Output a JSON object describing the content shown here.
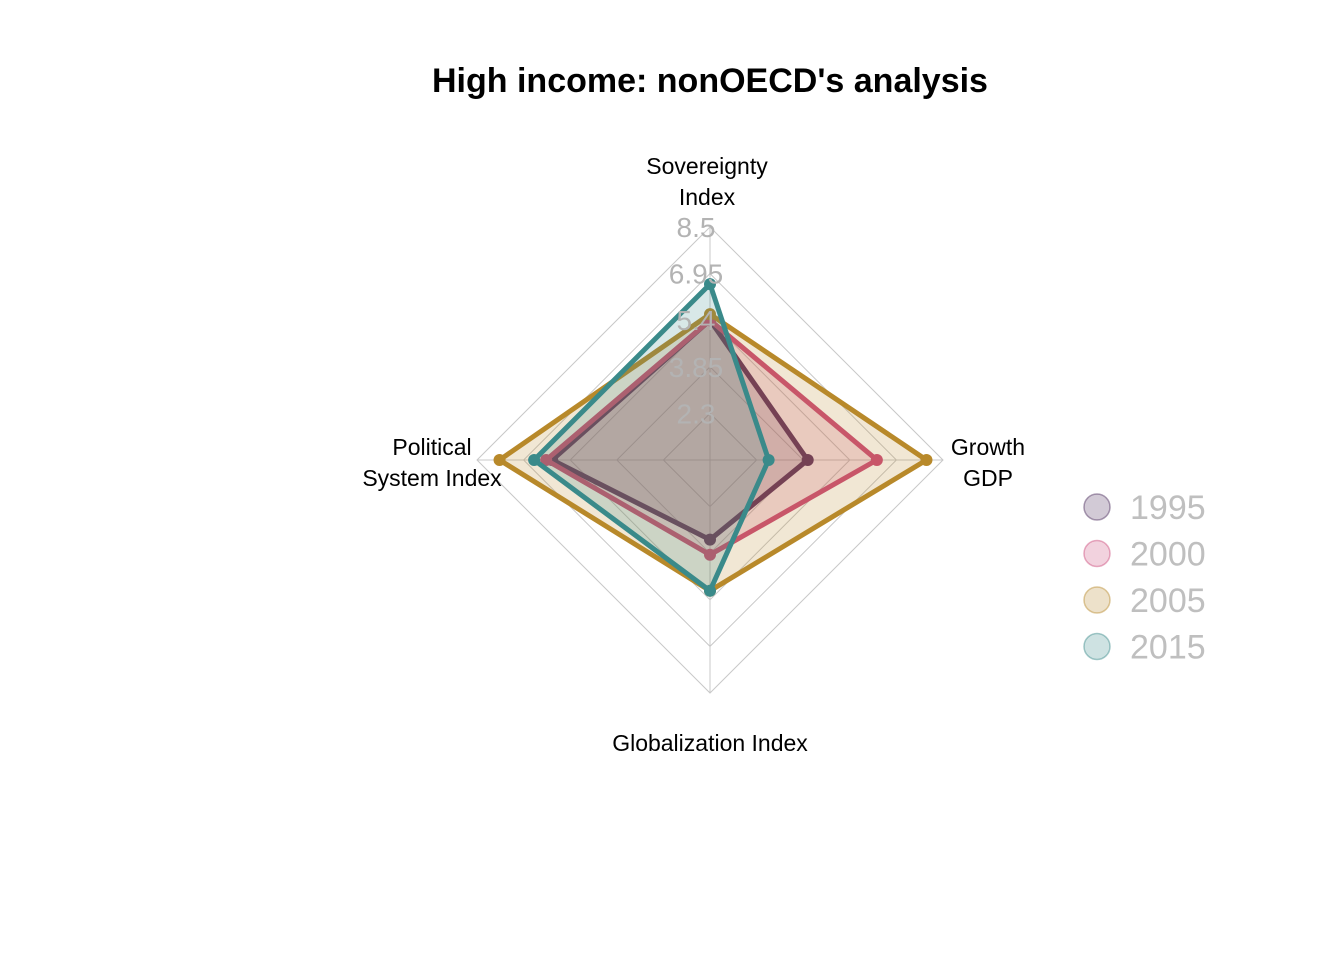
{
  "chart_data": {
    "type": "radar",
    "title": "High income: nonOECD's analysis",
    "axes": [
      {
        "label_lines": [
          "Sovereignty",
          "Index"
        ]
      },
      {
        "label_lines": [
          "Growth",
          "GDP"
        ]
      },
      {
        "label_lines": [
          "Globalization Index"
        ]
      },
      {
        "label_lines": [
          "Political",
          "System Index"
        ]
      }
    ],
    "radial_ticks": [
      "2.3",
      "3.85",
      "5.4",
      "6.95",
      "8.5"
    ],
    "range": [
      0.75,
      8.5
    ],
    "grid": "on",
    "legend_position": "right",
    "series": [
      {
        "name": "1995",
        "color": "#4a2a5a",
        "values": [
          5.4,
          4.0,
          3.4,
          6.0
        ]
      },
      {
        "name": "2000",
        "color": "#cc4a7a",
        "values": [
          5.4,
          6.3,
          3.9,
          6.2
        ]
      },
      {
        "name": "2005",
        "color": "#b8892a",
        "values": [
          5.6,
          7.95,
          5.1,
          7.75
        ]
      },
      {
        "name": "2015",
        "color": "#3a8a8a",
        "values": [
          6.6,
          2.7,
          5.1,
          6.6
        ]
      }
    ]
  }
}
